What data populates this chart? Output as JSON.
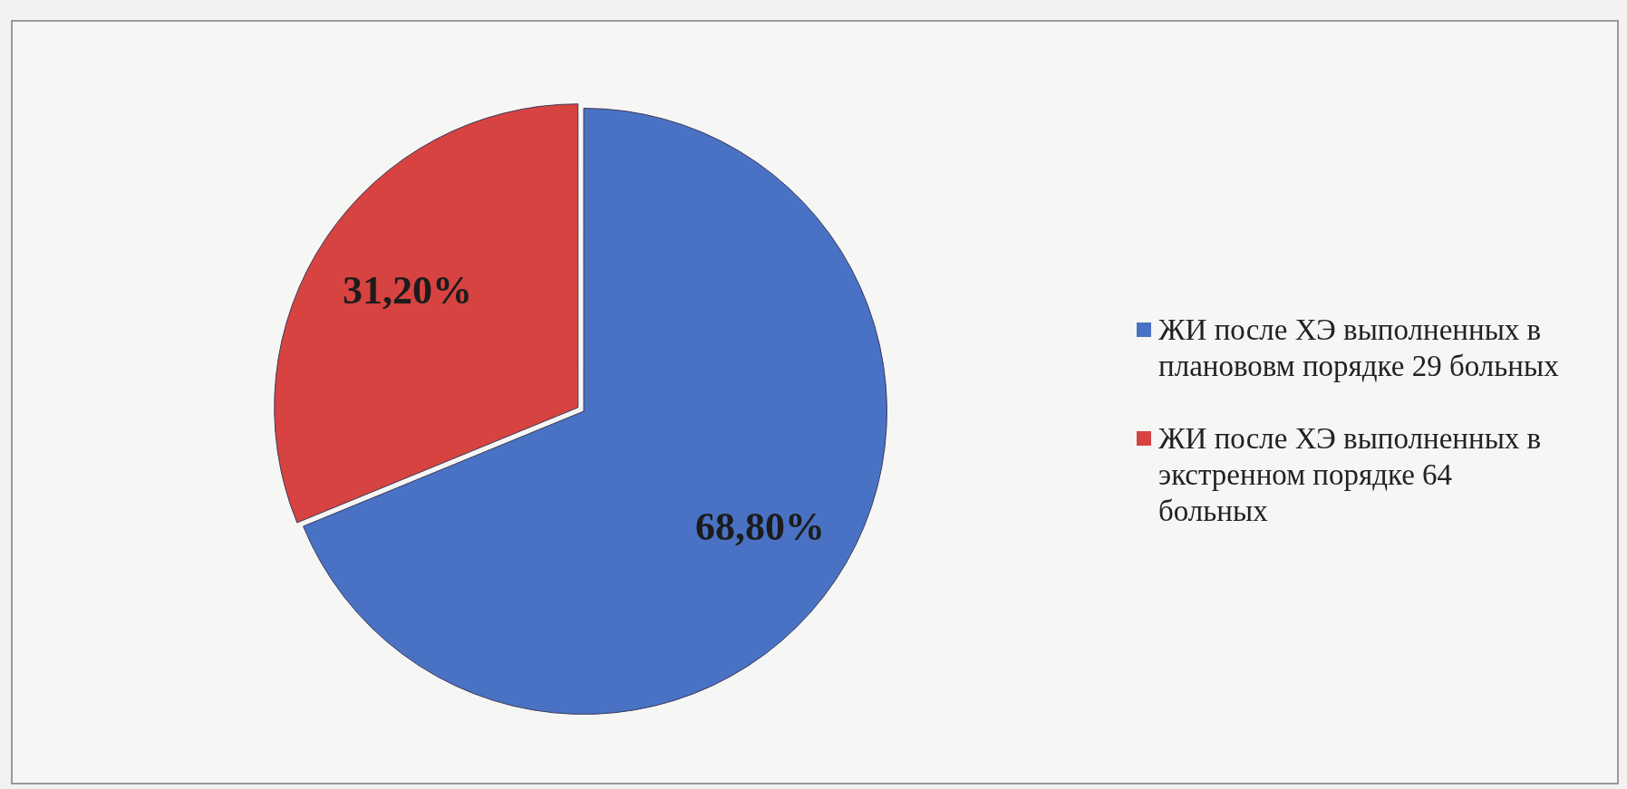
{
  "chart_data": {
    "type": "pie",
    "categories": [
      "ЖИ после ХЭ выполненных в планововм порядке 29 больных",
      "ЖИ после ХЭ выполненных в экстренном порядке 64 больных"
    ],
    "values": [
      68.8,
      31.2
    ],
    "colors": [
      "#4a72c4",
      "#d64340"
    ],
    "value_labels": [
      "68,80%",
      "31,20%"
    ],
    "legend": "right"
  }
}
